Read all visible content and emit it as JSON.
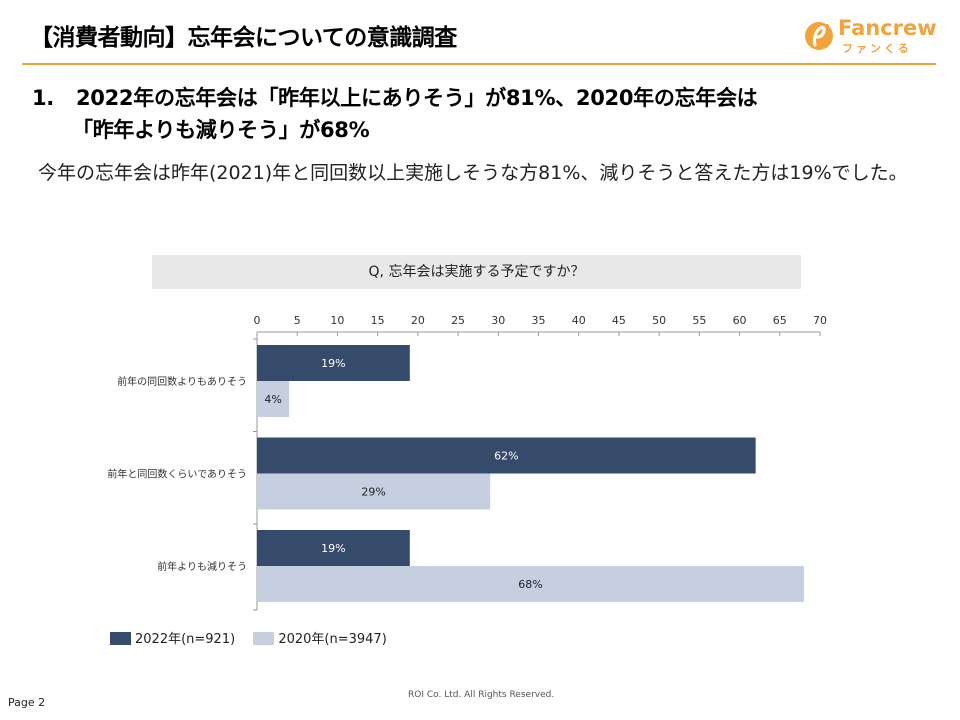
{
  "header": {
    "title": "【消費者動向】忘年会についての意識調査"
  },
  "logo": {
    "text": "Fancrew",
    "sub": "ファンくる",
    "color": "#f1a33c"
  },
  "headline": {
    "number": "1.",
    "line1": "2022年の忘年会は「昨年以上にありそう」が81%、2020年の忘年会は",
    "line2": "「昨年よりも減りそう」が68%"
  },
  "body_text": "今年の忘年会は昨年(2021)年と同回数以上実施しそうな方81%、減りそうと答えた方は19%でした。",
  "question": "Q, 忘年会は実施する予定ですか？",
  "chart_data": {
    "type": "bar",
    "orientation": "horizontal",
    "categories": [
      "前年の同回数よりもありそう",
      "前年と同回数くらいでありそう",
      "前年よりも減りそう"
    ],
    "series": [
      {
        "name": "2022年(n=921)",
        "values": [
          19,
          62,
          19
        ],
        "labels": [
          "19%",
          "62%",
          "19%"
        ],
        "color": "#364a6b",
        "label_color": "#ffffff"
      },
      {
        "name": "2020年(n=3947)",
        "values": [
          4,
          29,
          68
        ],
        "labels": [
          "4%",
          "29%",
          "68%"
        ],
        "color": "#c5cfe0",
        "label_color": "#222222"
      }
    ],
    "xlim": [
      0,
      70
    ],
    "xticks": [
      "0",
      "5",
      "10",
      "15",
      "20",
      "25",
      "30",
      "35",
      "40",
      "45",
      "50",
      "55",
      "60",
      "65",
      "70"
    ],
    "legend_position": "bottom-left",
    "grid": false
  },
  "footer": {
    "page": "Page 2",
    "copyright": "ROI Co. Ltd. All Rights Reserved."
  }
}
